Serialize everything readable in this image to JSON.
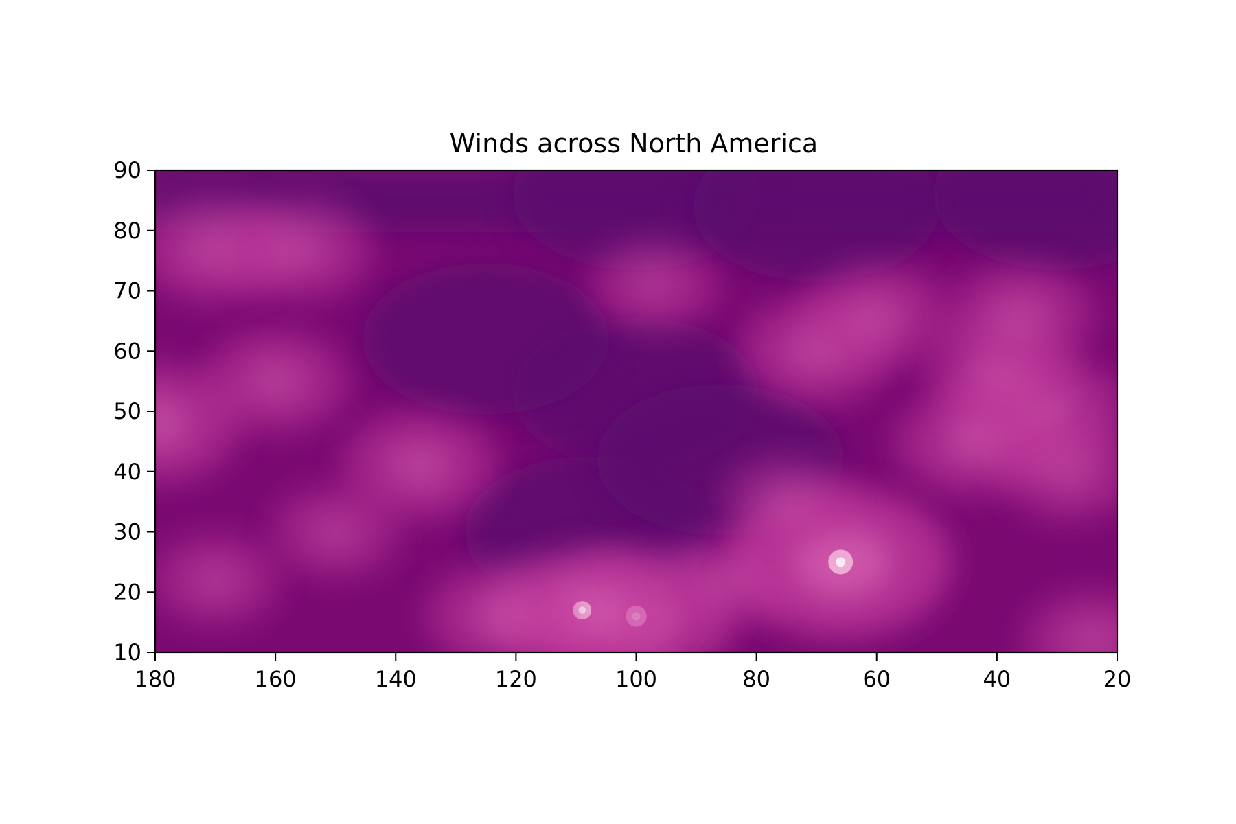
{
  "chart_data": {
    "type": "heatmap",
    "title": "Winds across North America",
    "xlabel": "",
    "ylabel": "",
    "xlim": [
      180,
      20
    ],
    "ylim": [
      10,
      90
    ],
    "x_ticks": [
      "180",
      "160",
      "140",
      "120",
      "100",
      "80",
      "60",
      "40",
      "20"
    ],
    "y_ticks": [
      "90",
      "80",
      "70",
      "60",
      "50",
      "40",
      "30",
      "20",
      "10"
    ],
    "grid": false,
    "legend": "none",
    "colormap": [
      "#5b0a6e",
      "#7a0a72",
      "#9c1f86",
      "#c23a9c",
      "#e070b8",
      "#f3b6d8",
      "#fbeef6"
    ],
    "features": [
      {
        "lon": 66,
        "lat": 25,
        "intensity": 1.0
      },
      {
        "lon": 100,
        "lat": 16,
        "intensity": 0.85
      },
      {
        "lon": 109,
        "lat": 17,
        "intensity": 0.75
      },
      {
        "lon": 122,
        "lat": 16,
        "intensity": 0.6
      },
      {
        "lon": 180,
        "lat": 48,
        "intensity": 0.7
      },
      {
        "lon": 170,
        "lat": 77,
        "intensity": 0.6
      },
      {
        "lon": 156,
        "lat": 77,
        "intensity": 0.55
      },
      {
        "lon": 136,
        "lat": 41,
        "intensity": 0.6
      },
      {
        "lon": 160,
        "lat": 55,
        "intensity": 0.55
      },
      {
        "lon": 33,
        "lat": 50,
        "intensity": 0.7
      },
      {
        "lon": 44,
        "lat": 45,
        "intensity": 0.6
      },
      {
        "lon": 40,
        "lat": 57,
        "intensity": 0.55
      },
      {
        "lon": 70,
        "lat": 60,
        "intensity": 0.6
      },
      {
        "lon": 60,
        "lat": 66,
        "intensity": 0.55
      },
      {
        "lon": 36,
        "lat": 66,
        "intensity": 0.55
      },
      {
        "lon": 97,
        "lat": 71,
        "intensity": 0.45
      },
      {
        "lon": 150,
        "lat": 30,
        "intensity": 0.45
      },
      {
        "lon": 85,
        "lat": 22,
        "intensity": 0.45
      },
      {
        "lon": 28,
        "lat": 40,
        "intensity": 0.5
      },
      {
        "lon": 24,
        "lat": 12,
        "intensity": 0.5
      },
      {
        "lon": 170,
        "lat": 22,
        "intensity": 0.45
      },
      {
        "lon": 75,
        "lat": 35,
        "intensity": 0.45
      }
    ],
    "calm_regions": [
      {
        "lon": 100,
        "lat": 53
      },
      {
        "lon": 108,
        "lat": 30
      },
      {
        "lon": 86,
        "lat": 42
      },
      {
        "lon": 125,
        "lat": 62
      },
      {
        "lon": 100,
        "lat": 86
      },
      {
        "lon": 70,
        "lat": 84
      },
      {
        "lon": 30,
        "lat": 86
      }
    ]
  }
}
